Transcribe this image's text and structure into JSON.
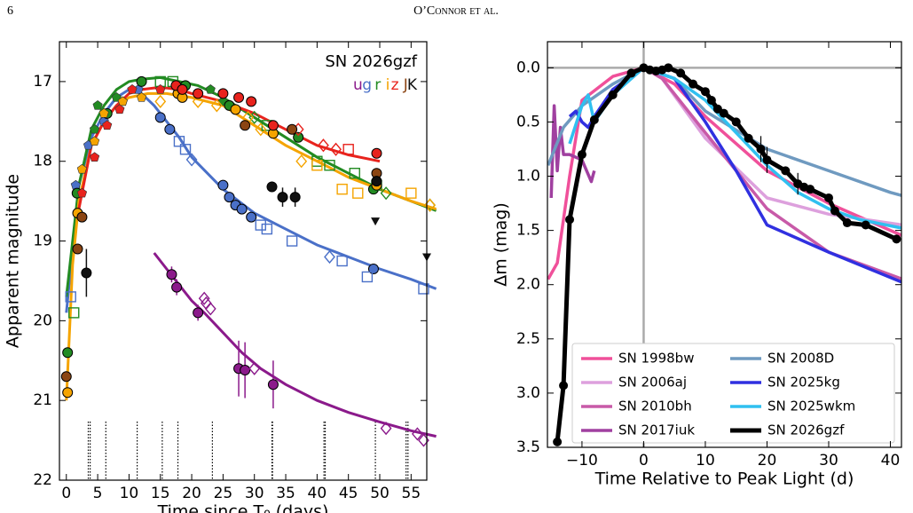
{
  "header": {
    "page_number": "6",
    "running_head": "O’Connor et al."
  },
  "chart_data": [
    {
      "type": "scatter",
      "xlabel": "Time since T₀ (days)",
      "ylabel": "Apparent magnitude",
      "legend_title": "SN 2026gzf",
      "xlim": [
        -1.1,
        57.5
      ],
      "xticks": [
        0,
        5,
        10,
        15,
        20,
        25,
        30,
        35,
        40,
        45,
        50,
        55
      ],
      "ylim": [
        22,
        16.5
      ],
      "yticks": [
        17,
        18,
        19,
        20,
        21,
        22
      ],
      "spectra_x": [
        3.5,
        3.8,
        6.3,
        11.3,
        15.3,
        17.8,
        23.3,
        32.8,
        32.9,
        41.1,
        41.3,
        49.3,
        54.2,
        54.5
      ],
      "series": [
        {
          "name": "u",
          "color": "#8b1a8b",
          "x": [
            16.8,
            17.6,
            21,
            22,
            22.3,
            23,
            27.5,
            28.5,
            30,
            33,
            51,
            56,
            57
          ],
          "values": [
            19.42,
            19.58,
            19.9,
            19.72,
            19.78,
            19.85,
            20.6,
            20.62,
            20.6,
            20.8,
            21.35,
            21.42,
            21.5
          ],
          "markers": [
            "o",
            "o",
            "o",
            "D",
            "D",
            "D",
            "o",
            "o",
            "D",
            "o",
            "D",
            "D",
            "D"
          ],
          "errors": [
            0.1,
            0.1,
            0.1,
            null,
            null,
            null,
            0.35,
            0.35,
            null,
            0.3,
            null,
            null,
            null
          ],
          "fit": {
            "x": [
              14,
              16,
              18,
              20,
              22,
              25,
              28,
              31,
              35,
              40,
              45,
              50,
              55,
              59
            ],
            "values": [
              19.15,
              19.35,
              19.55,
              19.75,
              19.9,
              20.15,
              20.4,
              20.6,
              20.8,
              21.0,
              21.15,
              21.27,
              21.38,
              21.45
            ]
          }
        },
        {
          "name": "g",
          "color": "#4a70c8",
          "x": [
            0.7,
            1.5,
            3.5,
            6,
            9,
            11.5,
            15,
            16.5,
            18,
            19,
            20,
            25,
            26,
            27,
            28,
            29.5,
            31,
            32,
            36,
            42,
            44,
            49,
            48,
            57
          ],
          "values": [
            19.7,
            18.3,
            17.8,
            17.5,
            17.25,
            17.1,
            17.45,
            17.6,
            17.75,
            17.85,
            17.98,
            18.3,
            18.45,
            18.55,
            18.6,
            18.7,
            18.8,
            18.85,
            19.0,
            19.2,
            19.25,
            19.35,
            19.45,
            19.6
          ],
          "markers": [
            "s",
            "p",
            "p",
            "p",
            "p",
            "p",
            "o",
            "o",
            "s",
            "s",
            "D",
            "o",
            "o",
            "o",
            "o",
            "o",
            "s",
            "s",
            "s",
            "D",
            "s",
            "o",
            "s",
            "s"
          ],
          "fit": {
            "x": [
              0,
              2,
              4,
              6,
              8,
              10,
              12,
              14,
              16,
              18,
              20,
              25,
              30,
              35,
              40,
              45,
              50,
              55,
              59
            ],
            "values": [
              19.9,
              18.3,
              17.7,
              17.4,
              17.2,
              17.1,
              17.15,
              17.3,
              17.5,
              17.7,
              17.95,
              18.35,
              18.65,
              18.85,
              19.05,
              19.2,
              19.35,
              19.48,
              19.6
            ]
          }
        },
        {
          "name": "r",
          "color": "#228b22",
          "x": [
            0.2,
            1.2,
            1.7,
            4.5,
            5,
            6.5,
            8,
            12,
            15,
            17,
            19,
            23,
            25,
            26,
            30,
            32,
            37,
            40,
            42,
            46,
            49,
            49.5,
            51,
            58
          ],
          "values": [
            20.4,
            19.9,
            18.4,
            17.6,
            17.3,
            17.4,
            17.2,
            17.0,
            17.0,
            17.0,
            17.05,
            17.1,
            17.25,
            17.3,
            17.45,
            17.55,
            17.7,
            18.0,
            18.05,
            18.15,
            18.35,
            18.3,
            18.4,
            18.55
          ],
          "markers": [
            "o",
            "s",
            "o",
            "p",
            "p",
            "o",
            "p",
            "o",
            "s",
            "s",
            "o",
            "p",
            "p",
            "o",
            "D",
            "s",
            "o",
            "s",
            "s",
            "s",
            "o",
            "s",
            "D",
            "D"
          ],
          "fit": {
            "x": [
              0,
              2,
              4,
              6,
              8,
              10,
              12,
              15,
              18,
              21,
              25,
              30,
              35,
              40,
              45,
              50,
              55,
              59
            ],
            "values": [
              19.7,
              18.3,
              17.6,
              17.3,
              17.1,
              17.0,
              16.97,
              16.95,
              17.0,
              17.05,
              17.2,
              17.45,
              17.7,
              17.95,
              18.15,
              18.35,
              18.5,
              18.62
            ]
          }
        },
        {
          "name": "i",
          "color": "#f5a400",
          "x": [
            0.2,
            1.8,
            2.5,
            4.5,
            6,
            9,
            12,
            15,
            17.8,
            18.5,
            21,
            24,
            27,
            29,
            31,
            33,
            37.5,
            40,
            44,
            46.5,
            49.5,
            55,
            58
          ],
          "values": [
            20.9,
            18.65,
            18.1,
            17.75,
            17.4,
            17.25,
            17.2,
            17.25,
            17.15,
            17.2,
            17.25,
            17.3,
            17.35,
            17.45,
            17.6,
            17.65,
            18.0,
            18.05,
            18.35,
            18.4,
            18.3,
            18.4,
            18.55
          ],
          "markers": [
            "o",
            "o",
            "p",
            "p",
            "p",
            "p",
            "p",
            "D",
            "o",
            "o",
            "D",
            "D",
            "o",
            "D",
            "D",
            "o",
            "D",
            "s",
            "s",
            "s",
            "o",
            "s",
            "D"
          ],
          "fit": {
            "x": [
              0,
              1,
              2,
              4,
              6,
              8,
              10,
              13,
              16,
              20,
              25,
              30,
              35,
              40,
              45,
              50,
              55,
              59
            ],
            "values": [
              21.0,
              19.3,
              18.5,
              17.8,
              17.5,
              17.3,
              17.2,
              17.15,
              17.15,
              17.2,
              17.3,
              17.55,
              17.8,
              18.0,
              18.2,
              18.35,
              18.5,
              18.6
            ]
          }
        },
        {
          "name": "z",
          "color": "#e8231d",
          "x": [
            2.5,
            4.5,
            6.5,
            8.5,
            10.5,
            15,
            17.5,
            18.5,
            21,
            25,
            27.5,
            29.5,
            33,
            37,
            41,
            43,
            45,
            49.5
          ],
          "values": [
            18.4,
            17.95,
            17.55,
            17.35,
            17.1,
            17.1,
            17.05,
            17.1,
            17.15,
            17.15,
            17.2,
            17.25,
            17.55,
            17.6,
            17.8,
            17.85,
            17.85,
            17.9
          ],
          "markers": [
            "p",
            "p",
            "p",
            "p",
            "p",
            "p",
            "o",
            "o",
            "o",
            "o",
            "o",
            "o",
            "o",
            "D",
            "D",
            "D",
            "s",
            "o"
          ],
          "fit": {
            "x": [
              2,
              4,
              6,
              8,
              10,
              12,
              14,
              16,
              18,
              20,
              25,
              30,
              35,
              40,
              45,
              50
            ],
            "values": [
              18.6,
              17.8,
              17.5,
              17.3,
              17.15,
              17.1,
              17.08,
              17.08,
              17.1,
              17.15,
              17.25,
              17.4,
              17.6,
              17.8,
              17.92,
              18.0
            ]
          }
        },
        {
          "name": "J",
          "color": "#8b4513",
          "x": [
            0,
            1.8,
            2.5,
            28.5,
            36,
            49.5
          ],
          "values": [
            20.7,
            19.1,
            18.7,
            17.55,
            17.6,
            18.15
          ],
          "markers": [
            "o",
            "o",
            "o",
            "o",
            "o",
            "o"
          ]
        },
        {
          "name": "K",
          "color": "#111111",
          "x": [
            3.2,
            32.8,
            34.5,
            36.5,
            49.5
          ],
          "values": [
            19.4,
            18.32,
            18.45,
            18.45,
            18.25
          ],
          "markers": [
            "o",
            "o",
            "o",
            "o",
            "o"
          ],
          "errors": [
            0.3,
            0.05,
            0.12,
            0.12,
            null
          ],
          "upper_limits": {
            "x": [
              49.3,
              57.5
            ],
            "values": [
              18.75,
              19.2
            ]
          }
        }
      ]
    },
    {
      "type": "line",
      "xlabel": "Time Relative to Peak Light (d)",
      "ylabel": "Δm (mag)",
      "xlim": [
        -15.6,
        41.8
      ],
      "xticks": [
        {
          "value": -10,
          "label": "−10"
        },
        0,
        10,
        20,
        30,
        40
      ],
      "ylim": [
        3.5,
        -0.24
      ],
      "yticks": [
        {
          "value": 0,
          "label": "0.0"
        },
        {
          "value": 0.5,
          "label": "0.5"
        },
        {
          "value": 1,
          "label": "1.0"
        },
        {
          "value": 1.5,
          "label": "1.5"
        },
        {
          "value": 2,
          "label": "2.0"
        },
        {
          "value": 2.5,
          "label": "2.5"
        },
        {
          "value": 3,
          "label": "3.0"
        },
        {
          "value": 3.5,
          "label": "3.5"
        }
      ],
      "reference_lines": {
        "x": 0,
        "y": 0
      },
      "legend": "lower left",
      "series": [
        {
          "name": "SN 1998bw",
          "color": "#f0509a",
          "x": [
            -15.5,
            -14,
            -12,
            -10,
            -5,
            0,
            5,
            10,
            20,
            30,
            40,
            42
          ],
          "values": [
            1.95,
            1.8,
            1.0,
            0.3,
            0.08,
            0,
            0.15,
            0.45,
            0.95,
            1.25,
            1.5,
            1.55
          ]
        },
        {
          "name": "SN 2006aj",
          "color": "#dda0dd",
          "x": [
            -2,
            0,
            3,
            10,
            20,
            30,
            42
          ],
          "values": [
            0.1,
            0,
            0.1,
            0.65,
            1.2,
            1.35,
            1.45
          ]
        },
        {
          "name": "SN 2010bh",
          "color": "#c85aa8",
          "x": [
            -1,
            0,
            3,
            10,
            20,
            30,
            42
          ],
          "values": [
            0.05,
            0,
            0.1,
            0.6,
            1.3,
            1.7,
            1.95
          ]
        },
        {
          "name": "SN 2017iuk",
          "color": "#a040a0",
          "x": [
            -15,
            -14.5,
            -14,
            -13.5,
            -13,
            -12,
            -10,
            -8.5,
            -8
          ],
          "values": [
            1.2,
            0.35,
            0.95,
            0.55,
            0.8,
            0.8,
            0.85,
            1.05,
            0.95
          ]
        },
        {
          "name": "SN 2008D",
          "color": "#6f9ac0",
          "x": [
            -15.5,
            -13,
            -10,
            -5,
            0,
            5,
            10,
            20,
            30,
            40,
            42
          ],
          "values": [
            0.9,
            0.55,
            0.35,
            0.15,
            0,
            0.1,
            0.4,
            0.75,
            0.95,
            1.15,
            1.18
          ]
        },
        {
          "name": "SN 2025kg",
          "color": "#3030e0",
          "x": [
            -12,
            -11,
            -10,
            -9,
            -8,
            -5,
            0,
            5,
            10,
            15,
            20,
            30,
            42
          ],
          "values": [
            0.45,
            0.4,
            0.5,
            0.55,
            0.45,
            0.2,
            0,
            0.1,
            0.5,
            0.95,
            1.45,
            1.7,
            1.98
          ]
        },
        {
          "name": "SN 2025wkm",
          "color": "#30c0f0",
          "x": [
            -12,
            -10,
            -9,
            -8,
            -5,
            0,
            5,
            10,
            15,
            20,
            25,
            30,
            35,
            42
          ],
          "values": [
            0.7,
            0.35,
            0.25,
            0.5,
            0.25,
            0,
            0.1,
            0.3,
            0.6,
            0.9,
            1.15,
            1.3,
            1.4,
            1.48
          ]
        },
        {
          "name": "SN 2026gzf",
          "color": "#000000",
          "markers": true,
          "x": [
            -14,
            -13,
            -12,
            -10,
            -8,
            -5,
            -2,
            0,
            1,
            2,
            3,
            4,
            6,
            8,
            10,
            11,
            12,
            13,
            15,
            17,
            19,
            20,
            23,
            25,
            26,
            27,
            30,
            31,
            33,
            36,
            41
          ],
          "values": [
            3.45,
            2.93,
            1.4,
            0.8,
            0.48,
            0.25,
            0.05,
            0,
            0.02,
            0.03,
            0.02,
            0,
            0.05,
            0.15,
            0.22,
            0.3,
            0.38,
            0.42,
            0.5,
            0.65,
            0.75,
            0.85,
            0.95,
            1.07,
            1.1,
            1.12,
            1.2,
            1.32,
            1.43,
            1.45,
            1.58
          ],
          "errors": [
            null,
            null,
            null,
            null,
            null,
            null,
            null,
            null,
            null,
            null,
            null,
            null,
            null,
            null,
            null,
            null,
            null,
            null,
            null,
            null,
            0.12,
            0.12,
            null,
            0.1,
            null,
            null,
            null,
            null,
            null,
            null,
            null
          ]
        }
      ]
    }
  ]
}
